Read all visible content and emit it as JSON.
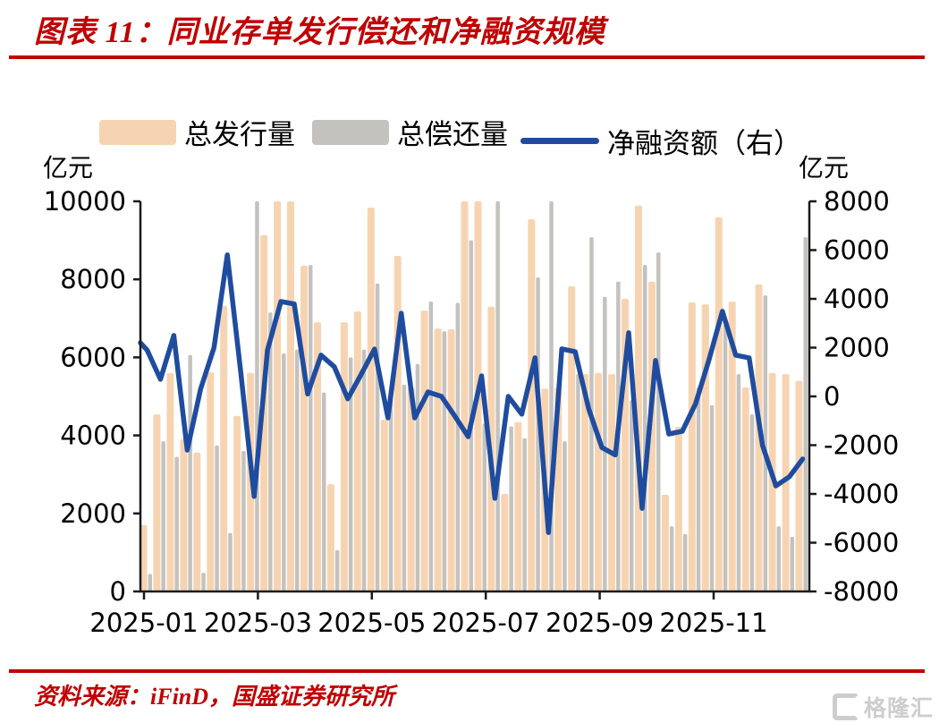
{
  "header": {
    "title": "图表 11：同业存单发行偿还和净融资规模"
  },
  "colors": {
    "accent_red": "#C00000",
    "issuance_bar": "#F7D4B1",
    "repayment_bar": "#C4C2BF",
    "net_line": "#1F4C9F",
    "axis_black": "#1a1a1a",
    "watermark_gray": "#cdcdcd"
  },
  "legend": {
    "issuance_label": "总发行量",
    "repayment_label": "总偿还量",
    "net_label": "净融资额（右）"
  },
  "axes": {
    "left_unit": "亿元",
    "right_unit": "亿元"
  },
  "footer": {
    "source": "资料来源：iFinD，国盛证券研究所",
    "watermark": "格隆汇"
  },
  "chart_data": {
    "type": "bar+line combo (bars on left axis, line on right axis)",
    "title": "同业存单发行偿还和净融资规模",
    "x": [
      "2025-01-03",
      "2025-01-10",
      "2025-01-17",
      "2025-01-24",
      "2025-01-31",
      "2025-02-07",
      "2025-02-14",
      "2025-02-21",
      "2025-02-28",
      "2025-03-07",
      "2025-03-14",
      "2025-03-21",
      "2025-03-28",
      "2025-04-04",
      "2025-04-11",
      "2025-04-18",
      "2025-04-25",
      "2025-05-02",
      "2025-05-09",
      "2025-05-16",
      "2025-05-23",
      "2025-05-30",
      "2025-06-06",
      "2025-06-13",
      "2025-06-20",
      "2025-06-27",
      "2025-07-04",
      "2025-07-11",
      "2025-07-18",
      "2025-07-25",
      "2025-08-01",
      "2025-08-08",
      "2025-08-15",
      "2025-08-22",
      "2025-08-29",
      "2025-09-05",
      "2025-09-12",
      "2025-09-19",
      "2025-09-26",
      "2025-10-03",
      "2025-10-10",
      "2025-10-17",
      "2025-10-24",
      "2025-10-31",
      "2025-11-07",
      "2025-11-14",
      "2025-11-21",
      "2025-11-28",
      "2025-12-05",
      "2025-12-12"
    ],
    "series": [
      {
        "name": "总发行量",
        "type": "bar",
        "axis": "left",
        "color": "#F7D4B1",
        "values": [
          1700,
          4540,
          5600,
          3900,
          3560,
          5620,
          7320,
          4500,
          5600,
          9130,
          10000,
          10000,
          8350,
          6900,
          2750,
          6900,
          7180,
          9840,
          4400,
          8600,
          5230,
          7200,
          6740,
          6720,
          10000,
          10000,
          7300,
          2500,
          4340,
          9540,
          5200,
          5230,
          7820,
          5570,
          5600,
          5570,
          7500,
          9890,
          7940,
          2480,
          4220,
          7410,
          7360,
          9590,
          7430,
          5230,
          7870,
          5600,
          5570,
          5400
        ]
      },
      {
        "name": "总偿还量",
        "type": "bar",
        "axis": "left",
        "color": "#C4C2BF",
        "values": [
          450,
          3850,
          3450,
          6060,
          480,
          3740,
          1500,
          3600,
          10000,
          7150,
          6100,
          6200,
          8370,
          5100,
          1060,
          6000,
          6200,
          7890,
          5100,
          5300,
          5830,
          7430,
          6670,
          7400,
          9000,
          4300,
          10000,
          4230,
          3930,
          8050,
          10000,
          3850,
          5570,
          9080,
          7550,
          7940,
          4900,
          8370,
          8690,
          1670,
          1470,
          5230,
          4770,
          6840,
          5570,
          4540,
          7590,
          1670,
          1400,
          9080
        ]
      },
      {
        "name": "净融资额（右）",
        "type": "line",
        "axis": "right",
        "color": "#1F4C9F",
        "values": [
          1900,
          700,
          2500,
          -2200,
          300,
          2000,
          5800,
          1000,
          -4100,
          1900,
          3890,
          3790,
          100,
          1690,
          1210,
          -100,
          900,
          1940,
          -880,
          3410,
          -880,
          180,
          0,
          -810,
          -1650,
          840,
          -4180,
          0,
          -730,
          1580,
          -5580,
          1950,
          1830,
          -500,
          -2100,
          -2400,
          2610,
          -4590,
          1470,
          -1540,
          -1430,
          -300,
          1500,
          3490,
          1690,
          1580,
          -2000,
          -3670,
          -3300,
          -2570
        ]
      }
    ],
    "left_axis": {
      "label": "亿元",
      "min": 0,
      "max": 10000,
      "ticks": [
        0,
        2000,
        4000,
        6000,
        8000,
        10000
      ]
    },
    "right_axis": {
      "label": "亿元",
      "min": -8000,
      "max": 8000,
      "ticks": [
        -8000,
        -6000,
        -4000,
        -2000,
        0,
        2000,
        4000,
        6000,
        8000
      ]
    },
    "x_axis": {
      "tick_labels": [
        "2025-01",
        "2025-03",
        "2025-05",
        "2025-07",
        "2025-09",
        "2025-11"
      ]
    },
    "grid": "off",
    "legend_position": "top"
  }
}
